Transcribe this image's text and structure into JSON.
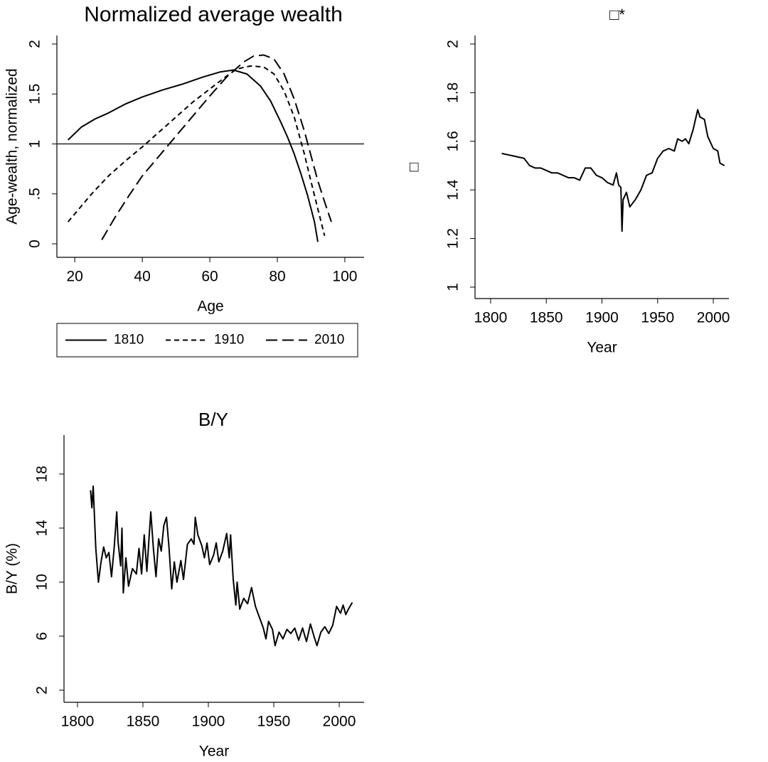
{
  "chart_data": [
    {
      "type": "line",
      "title": "Normalized average wealth",
      "xlabel": "Age",
      "ylabel": "Age-wealth, normalized",
      "xlim": [
        14.7,
        105.7
      ],
      "xticks": [
        20,
        40,
        60,
        80,
        100
      ],
      "ylim": [
        -0.135,
        2.085
      ],
      "yticks": [
        0,
        {
          "value": 0.5,
          "label": ".5"
        },
        1,
        1.5,
        2
      ],
      "refline": 1,
      "legend": "bottom",
      "series": [
        {
          "name": "1810",
          "color": "#000000",
          "style": "solid",
          "x": [
            18,
            22,
            26,
            30,
            35,
            40,
            46,
            52,
            58,
            63,
            67,
            71,
            75,
            78,
            81,
            83,
            85,
            87,
            89,
            91,
            92
          ],
          "values": [
            1.04,
            1.17,
            1.25,
            1.31,
            1.4,
            1.47,
            1.54,
            1.6,
            1.67,
            1.72,
            1.74,
            1.7,
            1.58,
            1.43,
            1.22,
            1.07,
            0.9,
            0.7,
            0.48,
            0.22,
            0.02
          ]
        },
        {
          "name": "1910",
          "color": "#000000",
          "style": "dash",
          "x": [
            18,
            22,
            25,
            30,
            35,
            40,
            45,
            50,
            55,
            60,
            65,
            68,
            72,
            76,
            79,
            82,
            85,
            88,
            90,
            92,
            94
          ],
          "values": [
            0.22,
            0.38,
            0.5,
            0.68,
            0.83,
            0.97,
            1.12,
            1.27,
            1.42,
            1.55,
            1.68,
            1.75,
            1.78,
            1.77,
            1.7,
            1.53,
            1.27,
            0.9,
            0.62,
            0.35,
            0.08
          ]
        },
        {
          "name": "2010",
          "color": "#000000",
          "style": "longdash",
          "x": [
            28,
            32,
            36,
            40,
            45,
            50,
            55,
            60,
            65,
            70,
            73,
            76,
            79,
            82,
            85,
            88,
            90,
            92,
            94,
            96
          ],
          "values": [
            0.04,
            0.27,
            0.48,
            0.68,
            0.88,
            1.08,
            1.28,
            1.48,
            1.67,
            1.82,
            1.88,
            1.89,
            1.85,
            1.7,
            1.45,
            1.13,
            0.88,
            0.63,
            0.42,
            0.22
          ]
        }
      ]
    },
    {
      "type": "line",
      "title": "□*",
      "xlabel": "Year",
      "ylabel": "□",
      "xlim": [
        1786,
        2014
      ],
      "xticks": [
        1800,
        1850,
        1900,
        1950,
        2000
      ],
      "ylim": [
        0.953,
        2.035
      ],
      "yticks": [
        1,
        1.2,
        1.4,
        1.6,
        1.8,
        2
      ],
      "series": [
        {
          "color": "#000000",
          "style": "solid",
          "x": [
            1810,
            1815,
            1820,
            1825,
            1830,
            1835,
            1840,
            1845,
            1850,
            1855,
            1860,
            1865,
            1870,
            1875,
            1880,
            1885,
            1890,
            1895,
            1900,
            1905,
            1910,
            1913,
            1915,
            1917,
            1918,
            1919,
            1922,
            1925,
            1930,
            1935,
            1940,
            1945,
            1950,
            1955,
            1960,
            1965,
            1968,
            1972,
            1975,
            1978,
            1982,
            1986,
            1988,
            1992,
            1995,
            2000,
            2004,
            2006,
            2010
          ],
          "values": [
            1.55,
            1.545,
            1.54,
            1.535,
            1.53,
            1.5,
            1.49,
            1.49,
            1.48,
            1.47,
            1.47,
            1.46,
            1.45,
            1.45,
            1.44,
            1.49,
            1.49,
            1.46,
            1.45,
            1.43,
            1.42,
            1.47,
            1.42,
            1.41,
            1.23,
            1.36,
            1.39,
            1.33,
            1.36,
            1.4,
            1.46,
            1.47,
            1.53,
            1.56,
            1.57,
            1.56,
            1.61,
            1.6,
            1.61,
            1.59,
            1.65,
            1.73,
            1.7,
            1.69,
            1.62,
            1.57,
            1.56,
            1.51,
            1.5
          ]
        }
      ]
    },
    {
      "type": "line",
      "title": "B/Y",
      "xlabel": "Year",
      "ylabel": "B/Y (%)",
      "xlim": [
        1789.7,
        2019
      ],
      "xticks": [
        1800,
        1850,
        1900,
        1950,
        2000
      ],
      "ylim": [
        1.105,
        20.89
      ],
      "yticks": [
        2,
        6,
        10,
        14,
        18
      ],
      "series": [
        {
          "color": "#000000",
          "style": "solid",
          "x": [
            1810,
            1811,
            1812,
            1814,
            1816,
            1818,
            1820,
            1822,
            1824,
            1826,
            1828,
            1830,
            1831,
            1833,
            1834,
            1835,
            1837,
            1839,
            1842,
            1845,
            1847,
            1849,
            1851,
            1853,
            1856,
            1858,
            1860,
            1862,
            1864,
            1866,
            1868,
            1870,
            1872,
            1874,
            1876,
            1879,
            1881,
            1884,
            1887,
            1889,
            1890,
            1892,
            1895,
            1897,
            1899,
            1901,
            1904,
            1906,
            1908,
            1911,
            1914,
            1916,
            1917,
            1919,
            1921,
            1922,
            1924,
            1927,
            1930,
            1933,
            1936,
            1939,
            1942,
            1944,
            1946,
            1949,
            1951,
            1954,
            1957,
            1960,
            1963,
            1966,
            1969,
            1972,
            1975,
            1978,
            1981,
            1983,
            1986,
            1989,
            1992,
            1995,
            1998,
            2001,
            2003,
            2005,
            2007,
            2010
          ],
          "values": [
            16.8,
            15.5,
            17.1,
            12.5,
            10,
            11.5,
            12.6,
            11.8,
            12.2,
            10.4,
            12.5,
            15.2,
            13,
            11.2,
            14,
            9.2,
            11.8,
            9.7,
            11,
            10.6,
            12.5,
            10.6,
            13.5,
            10.8,
            15.2,
            12.5,
            10.4,
            13.2,
            12.3,
            14.2,
            14.8,
            12.5,
            9.5,
            11.5,
            10,
            11.6,
            10.2,
            12.8,
            13.2,
            12.8,
            14.8,
            13.5,
            12.7,
            11.8,
            12.9,
            11.3,
            12,
            12.9,
            11.5,
            12.3,
            13.6,
            11.8,
            13.5,
            10.2,
            8.3,
            10,
            8,
            8.8,
            8.4,
            9.6,
            8.2,
            7.4,
            6.6,
            5.8,
            7.1,
            6.5,
            5.3,
            6.3,
            5.8,
            6.5,
            6.2,
            6.6,
            5.7,
            6.6,
            5.6,
            6.9,
            5.9,
            5.3,
            6.3,
            6.7,
            6.2,
            6.8,
            8.2,
            7.7,
            8.3,
            7.6,
            8,
            8.5
          ]
        }
      ]
    }
  ]
}
